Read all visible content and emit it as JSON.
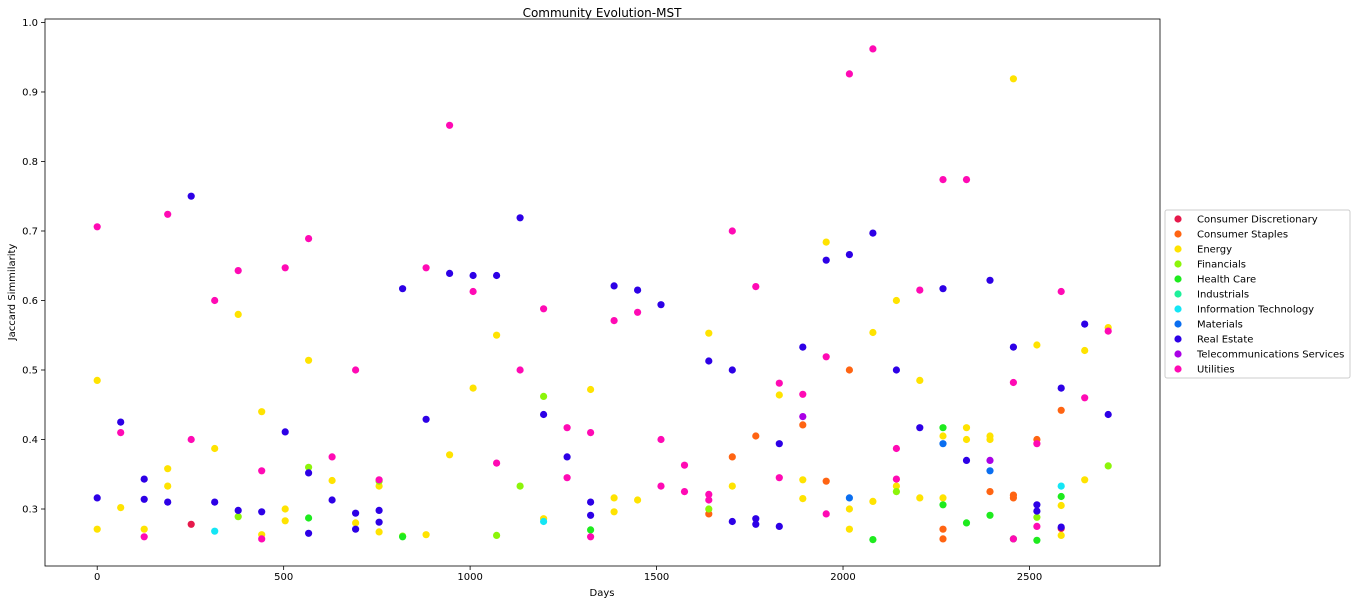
{
  "chart_data": {
    "type": "scatter",
    "title": "Community Evolution-MST",
    "xlabel": "Days",
    "ylabel": "Jaccard Simmilarity",
    "xlim": [
      -140,
      2850
    ],
    "ylim": [
      0.218,
      1.005
    ],
    "x_ticks": [
      0,
      500,
      1000,
      1500,
      2000,
      2500
    ],
    "y_ticks": [
      0.3,
      0.4,
      0.5,
      0.6,
      0.7,
      0.8,
      0.9,
      1.0
    ],
    "x_tick_labels": [
      "0",
      "500",
      "1000",
      "1500",
      "2000",
      "2500"
    ],
    "y_tick_labels": [
      "0.3",
      "0.4",
      "0.5",
      "0.6",
      "0.7",
      "0.8",
      "0.9",
      "1.0"
    ],
    "grid": false,
    "legend_position": "right",
    "series": [
      {
        "name": "Consumer Discretionary",
        "color": "#e6194b",
        "points": [
          [
            252,
            0.278
          ],
          [
            2585,
            0.272
          ]
        ]
      },
      {
        "name": "Consumer Staples",
        "color": "#ff6412",
        "points": [
          [
            1640,
            0.293
          ],
          [
            1703,
            0.375
          ],
          [
            1766,
            0.405
          ],
          [
            1892,
            0.421
          ],
          [
            1955,
            0.34
          ],
          [
            2017,
            0.5
          ],
          [
            2268,
            0.271
          ],
          [
            2268,
            0.257
          ],
          [
            2394,
            0.325
          ],
          [
            2457,
            0.32
          ],
          [
            2457,
            0.316
          ],
          [
            2520,
            0.4
          ],
          [
            2585,
            0.442
          ]
        ]
      },
      {
        "name": "Energy",
        "color": "#ffe300",
        "points": [
          [
            0,
            0.485
          ],
          [
            0,
            0.271
          ],
          [
            63,
            0.302
          ],
          [
            126,
            0.271
          ],
          [
            189,
            0.358
          ],
          [
            189,
            0.333
          ],
          [
            315,
            0.387
          ],
          [
            378,
            0.58
          ],
          [
            441,
            0.44
          ],
          [
            441,
            0.263
          ],
          [
            504,
            0.3
          ],
          [
            504,
            0.283
          ],
          [
            567,
            0.514
          ],
          [
            630,
            0.341
          ],
          [
            693,
            0.28
          ],
          [
            756,
            0.333
          ],
          [
            756,
            0.267
          ],
          [
            882,
            0.263
          ],
          [
            945,
            0.378
          ],
          [
            1008,
            0.474
          ],
          [
            1071,
            0.55
          ],
          [
            1197,
            0.286
          ],
          [
            1323,
            0.472
          ],
          [
            1386,
            0.316
          ],
          [
            1386,
            0.296
          ],
          [
            1449,
            0.313
          ],
          [
            1640,
            0.553
          ],
          [
            1703,
            0.333
          ],
          [
            1829,
            0.464
          ],
          [
            1892,
            0.342
          ],
          [
            1892,
            0.315
          ],
          [
            1955,
            0.684
          ],
          [
            2017,
            0.3
          ],
          [
            2017,
            0.271
          ],
          [
            2080,
            0.554
          ],
          [
            2080,
            0.311
          ],
          [
            2143,
            0.6
          ],
          [
            2143,
            0.333
          ],
          [
            2206,
            0.485
          ],
          [
            2206,
            0.316
          ],
          [
            2268,
            0.405
          ],
          [
            2268,
            0.316
          ],
          [
            2331,
            0.417
          ],
          [
            2331,
            0.4
          ],
          [
            2394,
            0.405
          ],
          [
            2394,
            0.4
          ],
          [
            2457,
            0.919
          ],
          [
            2520,
            0.536
          ],
          [
            2585,
            0.305
          ],
          [
            2585,
            0.262
          ],
          [
            2648,
            0.528
          ],
          [
            2648,
            0.342
          ],
          [
            2711,
            0.561
          ]
        ]
      },
      {
        "name": "Financials",
        "color": "#8cf50a",
        "points": [
          [
            378,
            0.289
          ],
          [
            567,
            0.36
          ],
          [
            756,
            0.34
          ],
          [
            819,
            0.261
          ],
          [
            1071,
            0.262
          ],
          [
            1134,
            0.333
          ],
          [
            1197,
            0.462
          ],
          [
            1640,
            0.3
          ],
          [
            2143,
            0.325
          ],
          [
            2520,
            0.288
          ],
          [
            2711,
            0.362
          ]
        ]
      },
      {
        "name": "Health Care",
        "color": "#1eeb1e",
        "points": [
          [
            567,
            0.287
          ],
          [
            819,
            0.26
          ],
          [
            1323,
            0.27
          ],
          [
            2080,
            0.256
          ],
          [
            2268,
            0.417
          ],
          [
            2268,
            0.306
          ],
          [
            2331,
            0.28
          ],
          [
            2394,
            0.291
          ],
          [
            2457,
            0.257
          ],
          [
            2520,
            0.255
          ],
          [
            2585,
            0.318
          ]
        ]
      },
      {
        "name": "Industrials",
        "color": "#1ef09b",
        "points": []
      },
      {
        "name": "Information Technology",
        "color": "#14e6f5",
        "points": [
          [
            315,
            0.268
          ],
          [
            1197,
            0.282
          ],
          [
            2585,
            0.333
          ]
        ]
      },
      {
        "name": "Materials",
        "color": "#0a6ef0",
        "points": [
          [
            2017,
            0.316
          ],
          [
            2268,
            0.394
          ],
          [
            2394,
            0.355
          ]
        ]
      },
      {
        "name": "Real Estate",
        "color": "#2d00e6",
        "points": [
          [
            0,
            0.316
          ],
          [
            63,
            0.425
          ],
          [
            126,
            0.343
          ],
          [
            126,
            0.314
          ],
          [
            189,
            0.31
          ],
          [
            252,
            0.75
          ],
          [
            315,
            0.31
          ],
          [
            378,
            0.298
          ],
          [
            441,
            0.296
          ],
          [
            504,
            0.411
          ],
          [
            567,
            0.352
          ],
          [
            567,
            0.265
          ],
          [
            630,
            0.313
          ],
          [
            693,
            0.294
          ],
          [
            693,
            0.271
          ],
          [
            756,
            0.298
          ],
          [
            756,
            0.281
          ],
          [
            819,
            0.617
          ],
          [
            882,
            0.429
          ],
          [
            945,
            0.639
          ],
          [
            1008,
            0.636
          ],
          [
            1071,
            0.636
          ],
          [
            1134,
            0.719
          ],
          [
            1197,
            0.436
          ],
          [
            1260,
            0.375
          ],
          [
            1323,
            0.31
          ],
          [
            1323,
            0.291
          ],
          [
            1386,
            0.621
          ],
          [
            1449,
            0.615
          ],
          [
            1512,
            0.594
          ],
          [
            1640,
            0.513
          ],
          [
            1703,
            0.5
          ],
          [
            1703,
            0.282
          ],
          [
            1766,
            0.286
          ],
          [
            1766,
            0.278
          ],
          [
            1829,
            0.394
          ],
          [
            1829,
            0.275
          ],
          [
            1892,
            0.533
          ],
          [
            1955,
            0.658
          ],
          [
            2017,
            0.666
          ],
          [
            2080,
            0.697
          ],
          [
            2143,
            0.5
          ],
          [
            2206,
            0.417
          ],
          [
            2268,
            0.617
          ],
          [
            2331,
            0.37
          ],
          [
            2394,
            0.629
          ],
          [
            2457,
            0.533
          ],
          [
            2520,
            0.306
          ],
          [
            2520,
            0.297
          ],
          [
            2585,
            0.474
          ],
          [
            2585,
            0.274
          ],
          [
            2648,
            0.566
          ],
          [
            2711,
            0.436
          ]
        ]
      },
      {
        "name": "Telecommunications Services",
        "color": "#aa00e6",
        "points": [
          [
            1892,
            0.433
          ],
          [
            2394,
            0.37
          ]
        ]
      },
      {
        "name": "Utilities",
        "color": "#ff0ab4",
        "points": [
          [
            0,
            0.706
          ],
          [
            63,
            0.41
          ],
          [
            126,
            0.26
          ],
          [
            189,
            0.724
          ],
          [
            252,
            0.4
          ],
          [
            315,
            0.6
          ],
          [
            378,
            0.643
          ],
          [
            441,
            0.355
          ],
          [
            441,
            0.257
          ],
          [
            504,
            0.647
          ],
          [
            567,
            0.689
          ],
          [
            630,
            0.375
          ],
          [
            693,
            0.5
          ],
          [
            756,
            0.342
          ],
          [
            882,
            0.647
          ],
          [
            945,
            0.852
          ],
          [
            1008,
            0.613
          ],
          [
            1071,
            0.366
          ],
          [
            1134,
            0.5
          ],
          [
            1197,
            0.588
          ],
          [
            1260,
            0.417
          ],
          [
            1260,
            0.345
          ],
          [
            1323,
            0.41
          ],
          [
            1323,
            0.26
          ],
          [
            1386,
            0.571
          ],
          [
            1449,
            0.583
          ],
          [
            1512,
            0.4
          ],
          [
            1512,
            0.333
          ],
          [
            1575,
            0.363
          ],
          [
            1575,
            0.325
          ],
          [
            1640,
            0.321
          ],
          [
            1640,
            0.313
          ],
          [
            1703,
            0.7
          ],
          [
            1766,
            0.62
          ],
          [
            1829,
            0.481
          ],
          [
            1829,
            0.345
          ],
          [
            1892,
            0.465
          ],
          [
            1955,
            0.519
          ],
          [
            1955,
            0.293
          ],
          [
            2017,
            0.926
          ],
          [
            2080,
            0.962
          ],
          [
            2143,
            0.387
          ],
          [
            2143,
            0.343
          ],
          [
            2206,
            0.615
          ],
          [
            2268,
            0.774
          ],
          [
            2331,
            0.774
          ],
          [
            2457,
            0.482
          ],
          [
            2457,
            0.257
          ],
          [
            2520,
            0.394
          ],
          [
            2520,
            0.275
          ],
          [
            2585,
            0.613
          ],
          [
            2648,
            0.46
          ],
          [
            2711,
            0.556
          ]
        ]
      }
    ]
  }
}
